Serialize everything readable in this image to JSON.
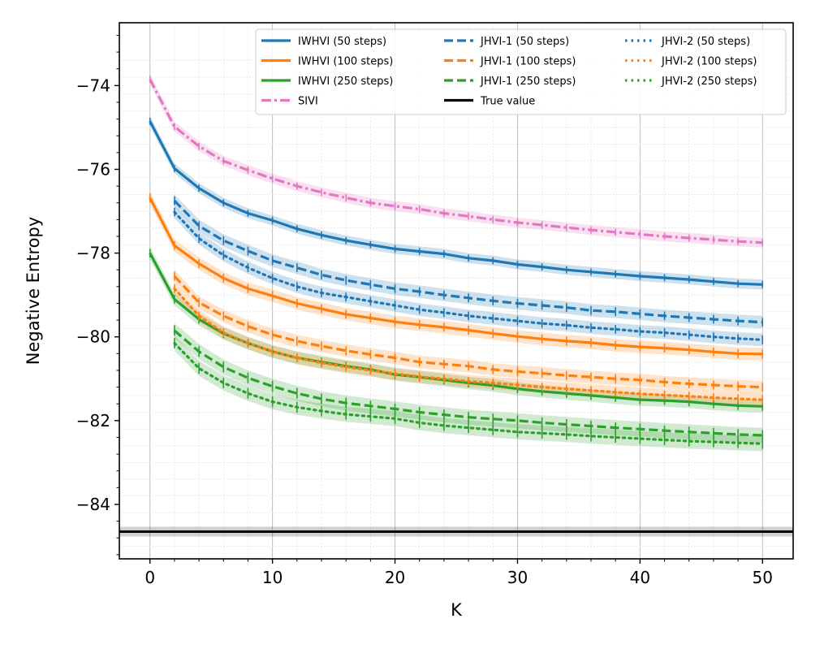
{
  "chart_data": {
    "type": "line",
    "title": "",
    "xlabel": "K",
    "ylabel": "Negative Entropy",
    "xlim": [
      -2.5,
      52.5
    ],
    "ylim": [
      -85.3,
      -72.5
    ],
    "xticks": [
      0,
      10,
      20,
      30,
      40,
      50
    ],
    "yticks": [
      -84,
      -82,
      -80,
      -78,
      -76,
      -74
    ],
    "grid": true,
    "legend_position": "top-right",
    "true_value": -84.65,
    "series": [
      {
        "name": "IWHVI (50 steps)",
        "color": "#1f77b4",
        "style": "solid",
        "band": 0.12,
        "x": [
          0,
          2,
          4,
          6,
          8,
          10,
          12,
          14,
          16,
          18,
          20,
          22,
          24,
          26,
          28,
          30,
          32,
          34,
          36,
          38,
          40,
          42,
          44,
          46,
          48,
          50
        ],
        "y": [
          -74.85,
          -75.98,
          -76.45,
          -76.8,
          -77.05,
          -77.22,
          -77.42,
          -77.57,
          -77.7,
          -77.8,
          -77.9,
          -77.96,
          -78.02,
          -78.12,
          -78.18,
          -78.27,
          -78.33,
          -78.4,
          -78.45,
          -78.5,
          -78.55,
          -78.59,
          -78.63,
          -78.68,
          -78.73,
          -78.75
        ]
      },
      {
        "name": "IWHVI (100 steps)",
        "color": "#ff7f0e",
        "style": "solid",
        "band": 0.15,
        "x": [
          0,
          2,
          4,
          6,
          8,
          10,
          12,
          14,
          16,
          18,
          20,
          22,
          24,
          26,
          28,
          30,
          32,
          34,
          36,
          38,
          40,
          42,
          44,
          46,
          48,
          50
        ],
        "y": [
          -76.68,
          -77.82,
          -78.25,
          -78.6,
          -78.85,
          -79.02,
          -79.2,
          -79.33,
          -79.46,
          -79.55,
          -79.64,
          -79.71,
          -79.77,
          -79.84,
          -79.92,
          -79.99,
          -80.05,
          -80.1,
          -80.14,
          -80.2,
          -80.24,
          -80.27,
          -80.31,
          -80.36,
          -80.4,
          -80.41
        ]
      },
      {
        "name": "IWHVI (250 steps)",
        "color": "#2ca02c",
        "style": "solid",
        "band": 0.15,
        "x": [
          0,
          2,
          4,
          6,
          8,
          10,
          12,
          14,
          16,
          18,
          20,
          22,
          24,
          26,
          28,
          30,
          32,
          34,
          36,
          38,
          40,
          42,
          44,
          46,
          48,
          50
        ],
        "y": [
          -78.0,
          -79.1,
          -79.58,
          -79.92,
          -80.15,
          -80.35,
          -80.5,
          -80.6,
          -80.7,
          -80.78,
          -80.9,
          -80.96,
          -81.03,
          -81.1,
          -81.16,
          -81.24,
          -81.3,
          -81.35,
          -81.4,
          -81.45,
          -81.5,
          -81.52,
          -81.55,
          -81.6,
          -81.64,
          -81.66
        ]
      },
      {
        "name": "SIVI",
        "color": "#e377c2",
        "style": "dashdot",
        "band": 0.12,
        "x": [
          0,
          2,
          4,
          6,
          8,
          10,
          12,
          14,
          16,
          18,
          20,
          22,
          24,
          26,
          28,
          30,
          32,
          34,
          36,
          38,
          40,
          42,
          44,
          46,
          48,
          50
        ],
        "y": [
          -73.85,
          -74.98,
          -75.45,
          -75.8,
          -76.02,
          -76.22,
          -76.4,
          -76.55,
          -76.68,
          -76.8,
          -76.88,
          -76.95,
          -77.05,
          -77.12,
          -77.2,
          -77.27,
          -77.33,
          -77.39,
          -77.45,
          -77.5,
          -77.55,
          -77.6,
          -77.64,
          -77.68,
          -77.72,
          -77.75
        ]
      },
      {
        "name": "JHVI-1 (50 steps)",
        "color": "#1f77b4",
        "style": "dashed",
        "band": 0.15,
        "x": [
          2,
          4,
          6,
          8,
          10,
          12,
          14,
          16,
          18,
          20,
          22,
          24,
          26,
          28,
          30,
          32,
          34,
          36,
          38,
          40,
          42,
          44,
          46,
          48,
          50
        ],
        "y": [
          -76.75,
          -77.35,
          -77.7,
          -77.95,
          -78.18,
          -78.35,
          -78.52,
          -78.65,
          -78.75,
          -78.85,
          -78.92,
          -79.0,
          -79.07,
          -79.14,
          -79.2,
          -79.25,
          -79.3,
          -79.37,
          -79.4,
          -79.45,
          -79.5,
          -79.54,
          -79.58,
          -79.62,
          -79.65
        ]
      },
      {
        "name": "JHVI-1 (100 steps)",
        "color": "#ff7f0e",
        "style": "dashed",
        "band": 0.15,
        "x": [
          2,
          4,
          6,
          8,
          10,
          12,
          14,
          16,
          18,
          20,
          22,
          24,
          26,
          28,
          30,
          32,
          34,
          36,
          38,
          40,
          42,
          44,
          46,
          48,
          50
        ],
        "y": [
          -78.55,
          -79.18,
          -79.5,
          -79.75,
          -79.95,
          -80.1,
          -80.22,
          -80.33,
          -80.42,
          -80.5,
          -80.6,
          -80.65,
          -80.7,
          -80.78,
          -80.83,
          -80.87,
          -80.92,
          -80.96,
          -81.0,
          -81.03,
          -81.08,
          -81.12,
          -81.15,
          -81.18,
          -81.2
        ]
      },
      {
        "name": "JHVI-1 (250 steps)",
        "color": "#2ca02c",
        "style": "dashed",
        "band": 0.18,
        "x": [
          2,
          4,
          6,
          8,
          10,
          12,
          14,
          16,
          18,
          20,
          22,
          24,
          26,
          28,
          30,
          32,
          34,
          36,
          38,
          40,
          42,
          44,
          46,
          48,
          50
        ],
        "y": [
          -79.85,
          -80.35,
          -80.72,
          -80.98,
          -81.18,
          -81.35,
          -81.48,
          -81.58,
          -81.65,
          -81.72,
          -81.8,
          -81.86,
          -81.92,
          -81.96,
          -82.0,
          -82.05,
          -82.09,
          -82.13,
          -82.17,
          -82.2,
          -82.24,
          -82.27,
          -82.3,
          -82.33,
          -82.35
        ]
      },
      {
        "name": "JHVI-2 (50 steps)",
        "color": "#1f77b4",
        "style": "dotted",
        "band": 0.15,
        "x": [
          2,
          4,
          6,
          8,
          10,
          12,
          14,
          16,
          18,
          20,
          22,
          24,
          26,
          28,
          30,
          32,
          34,
          36,
          38,
          40,
          42,
          44,
          46,
          48,
          50
        ],
        "y": [
          -77.02,
          -77.65,
          -78.05,
          -78.35,
          -78.6,
          -78.8,
          -78.95,
          -79.05,
          -79.15,
          -79.25,
          -79.35,
          -79.42,
          -79.5,
          -79.56,
          -79.62,
          -79.68,
          -79.72,
          -79.78,
          -79.82,
          -79.87,
          -79.9,
          -79.95,
          -80.0,
          -80.04,
          -80.07
        ]
      },
      {
        "name": "JHVI-2 (100 steps)",
        "color": "#ff7f0e",
        "style": "dotted",
        "band": 0.15,
        "x": [
          2,
          4,
          6,
          8,
          10,
          12,
          14,
          16,
          18,
          20,
          22,
          24,
          26,
          28,
          30,
          32,
          34,
          36,
          38,
          40,
          42,
          44,
          46,
          48,
          50
        ],
        "y": [
          -78.85,
          -79.5,
          -79.9,
          -80.15,
          -80.35,
          -80.5,
          -80.62,
          -80.72,
          -80.8,
          -80.88,
          -80.95,
          -81.0,
          -81.06,
          -81.1,
          -81.15,
          -81.2,
          -81.24,
          -81.28,
          -81.32,
          -81.36,
          -81.39,
          -81.42,
          -81.45,
          -81.48,
          -81.5
        ]
      },
      {
        "name": "JHVI-2 (250 steps)",
        "color": "#2ca02c",
        "style": "dotted",
        "band": 0.18,
        "x": [
          2,
          4,
          6,
          8,
          10,
          12,
          14,
          16,
          18,
          20,
          22,
          24,
          26,
          28,
          30,
          32,
          34,
          36,
          38,
          40,
          42,
          44,
          46,
          48,
          50
        ],
        "y": [
          -80.15,
          -80.75,
          -81.1,
          -81.35,
          -81.55,
          -81.68,
          -81.77,
          -81.85,
          -81.9,
          -81.95,
          -82.05,
          -82.12,
          -82.17,
          -82.22,
          -82.27,
          -82.3,
          -82.33,
          -82.37,
          -82.4,
          -82.43,
          -82.46,
          -82.49,
          -82.51,
          -82.53,
          -82.55
        ]
      }
    ],
    "legend": {
      "columns": [
        [
          "IWHVI (50 steps)",
          "IWHVI (100 steps)",
          "IWHVI (250 steps)",
          "SIVI"
        ],
        [
          "JHVI-1 (50 steps)",
          "JHVI-1 (100 steps)",
          "JHVI-1 (250 steps)",
          "True value"
        ],
        [
          "JHVI-2 (50 steps)",
          "JHVI-2 (100 steps)",
          "JHVI-2 (250 steps)"
        ]
      ],
      "true_value_label": "True value",
      "true_value_color": "#000000"
    }
  }
}
